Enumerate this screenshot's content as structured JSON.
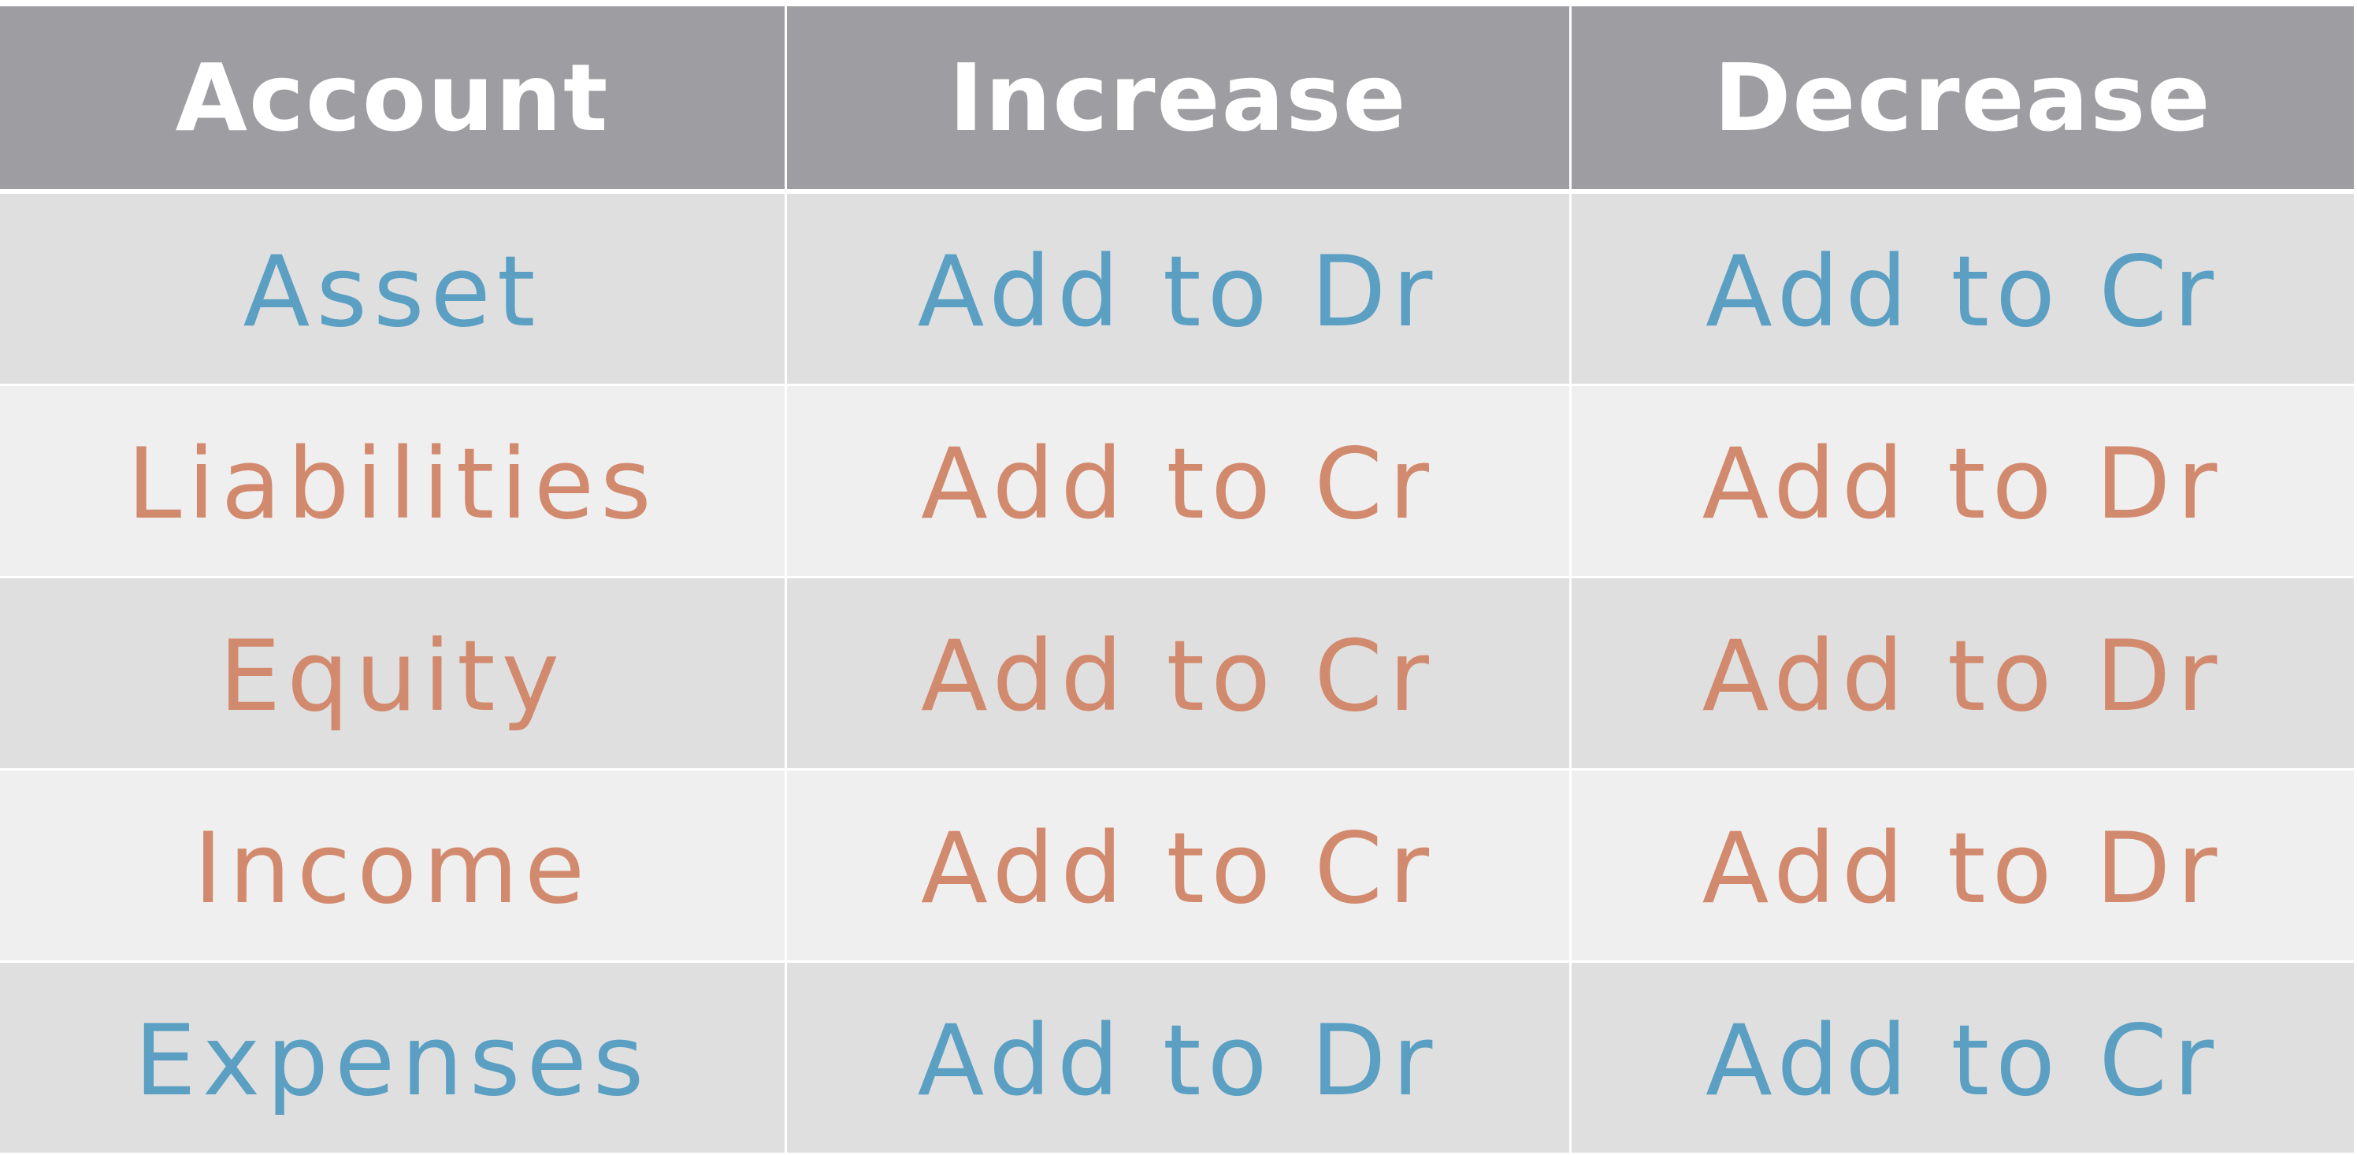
{
  "headers": [
    "Account",
    "Increase",
    "Decrease"
  ],
  "colors": {
    "header_bg": "#9e9ea2",
    "header_text": "#ffffff",
    "row_dark": "#dfdfdf",
    "row_light": "#efefef",
    "debit_normal": "#5b9fc3",
    "credit_normal": "#d28a6e"
  },
  "rows": [
    {
      "account": "Asset",
      "increase": "Add to Dr",
      "decrease": "Add to Cr",
      "color": "blue"
    },
    {
      "account": "Liabilities",
      "increase": "Add to Cr",
      "decrease": "Add to Dr",
      "color": "orange"
    },
    {
      "account": "Equity",
      "increase": "Add to Cr",
      "decrease": "Add to Dr",
      "color": "orange"
    },
    {
      "account": "Income",
      "increase": "Add to Cr",
      "decrease": "Add to Dr",
      "color": "orange"
    },
    {
      "account": "Expenses",
      "increase": "Add to Dr",
      "decrease": "Add to Cr",
      "color": "blue"
    }
  ]
}
